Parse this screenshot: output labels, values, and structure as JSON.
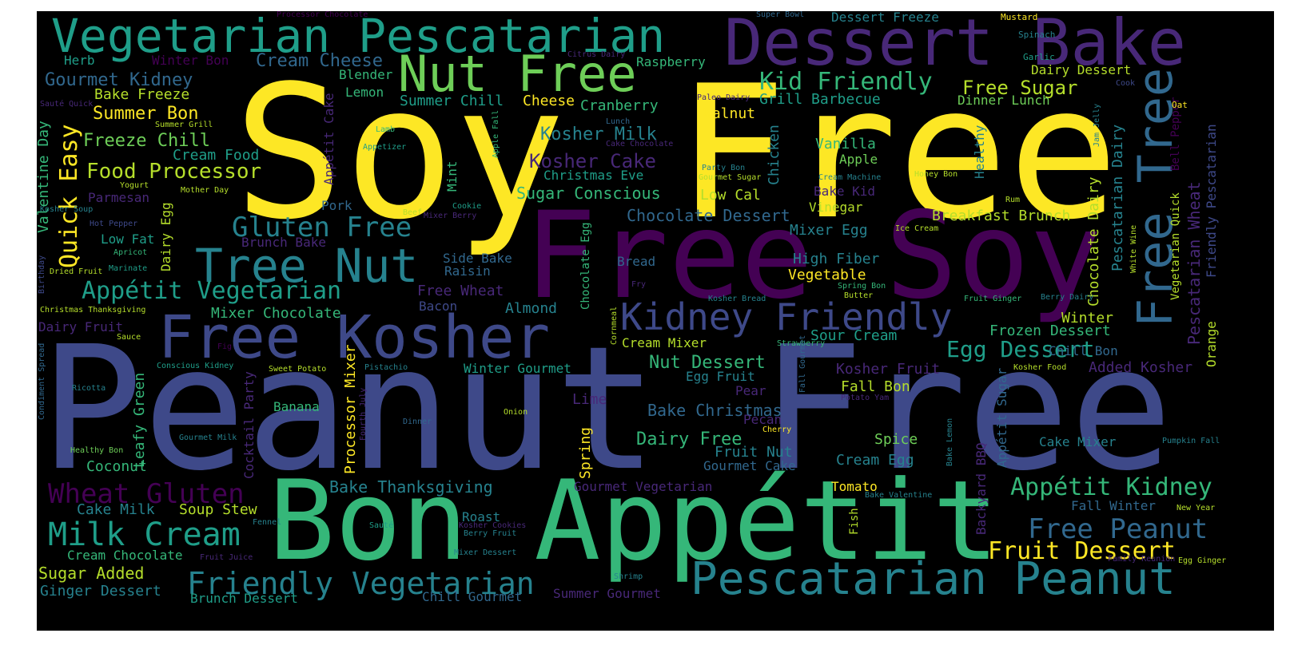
{
  "palette": {
    "background": "#000000",
    "yellow": "#fde725",
    "yellow_green": "#b5de2b",
    "green": "#6ece58",
    "green2": "#35b779",
    "teal": "#1f9e89",
    "teal2": "#26828e",
    "blue": "#31688e",
    "indigo": "#3e4989",
    "purple": "#482878",
    "dark_purple": "#440154"
  },
  "words": {
    "w001": "Soy Free",
    "w002": "Peanut Free",
    "w003": "Free Soy",
    "w004": "Bon Appétit",
    "w005": "Dessert Bake",
    "w006": "Vegetarian Pescatarian",
    "w007": "Nut Free",
    "w008": "Tree Nut",
    "w009": "Free Kosher",
    "w010": "Kidney Friendly",
    "w011": "Pescatarian Peanut",
    "w012": "Friendly Vegetarian",
    "w013": "Free Tree",
    "w014": "Milk Cream",
    "w015": "Wheat Gluten",
    "w016": "Gluten Free",
    "w017": "Appétit Vegetarian",
    "w018": "Quick Easy",
    "w019": "Kid Friendly",
    "w020": "Appétit Kidney",
    "w021": "Free Peanut",
    "w022": "Fruit Dessert",
    "w023": "Egg Dessert",
    "w024": "Food Processor",
    "w025": "Free Sugar",
    "w026": "Freeze Chill",
    "w027": "Summer Bon",
    "w028": "Gourmet Kidney",
    "w029": "Cream Cheese",
    "w030": "Kosher Cake",
    "w031": "Kosher Milk",
    "w032": "Chocolate Dessert",
    "w033": "Sugar Conscious",
    "w034": "Dairy Free",
    "w035": "Nut Dessert",
    "w036": "Bake Christmas",
    "w037": "Bake Thanksgiving",
    "w038": "Grill Barbecue",
    "w039": "Summer Chill",
    "w040": "Dinner Lunch",
    "w041": "Dairy Dessert",
    "w042": "Breakfast Brunch",
    "w043": "Pescatarian Wheat",
    "w044": "Pescatarian Dairy",
    "w045": "Chocolate Dairy",
    "w046": "Friendly Pescatarian",
    "w047": "Vegetarian Quick",
    "w048": "Bell Pepper",
    "w049": "Frozen Dessert",
    "w050": "Added Kosher",
    "w051": "Kosher Fruit",
    "w052": "Chill Bon",
    "w053": "Winter",
    "w054": "Orange",
    "w055": "Fall Winter",
    "w056": "Cake Mixer",
    "w057": "Cream Egg",
    "w058": "Spice",
    "w059": "Fruit Nut",
    "w060": "Gourmet Cake",
    "w061": "Tomato",
    "w062": "Gourmet Vegetarian",
    "w063": "Summer Gourmet",
    "w064": "Chill Gourmet",
    "w065": "Brunch Dessert",
    "w066": "Ginger Dessert",
    "w067": "Sugar Added",
    "w068": "Cream Chocolate",
    "w069": "Cake Milk",
    "w070": "Soup Stew",
    "w071": "Coconut",
    "w072": "Processor Mixer",
    "w073": "Leafy Green",
    "w074": "Cocktail Party",
    "w075": "Banana",
    "w076": "Winter Gourmet",
    "w077": "Cream Mixer",
    "w078": "Egg Fruit",
    "w079": "Pear",
    "w080": "Fall Bon",
    "w081": "Sour Cream",
    "w082": "Mixer Egg",
    "w083": "High Fiber",
    "w084": "Vegetable",
    "w085": "Bake Kid",
    "w086": "Vinegar",
    "w087": "Low Cal",
    "w088": "Vanilla",
    "w089": "Apple",
    "w090": "Healthy",
    "w091": "Chicken",
    "w092": "Walnut",
    "w093": "Cranberry",
    "w094": "Cheese",
    "w095": "Raspberry",
    "w096": "Lemon",
    "w097": "Blender",
    "w098": "Herb",
    "w099": "Winter Bon",
    "w100": "Bake Freeze",
    "w101": "Cream Food",
    "w102": "Valentine Day",
    "w103": "Dairy Egg",
    "w104": "Parmesan",
    "w105": "Low Fat",
    "w106": "Mixer Chocolate",
    "w107": "Dairy Fruit",
    "w108": "Bacon",
    "w109": "Almond",
    "w110": "Free Wheat",
    "w111": "Raisin",
    "w112": "Side Bake",
    "w113": "Bread",
    "w114": "Chocolate Egg",
    "w115": "Christmas Eve",
    "w116": "Mint",
    "w117": "Pork",
    "w118": "Brunch Bake",
    "w119": "Appétit Cake",
    "w120": "Lime",
    "w121": "Pecan",
    "w122": "Spring",
    "w123": "Roast",
    "w124": "Backyard BBQ",
    "w125": "Appétit Sugar",
    "w126": "Fish",
    "w127": "Processor Chocolate",
    "w128": "Super Bowl",
    "w129": "Dessert Freeze",
    "w130": "Mustard",
    "w131": "Spinach",
    "w132": "Garlic",
    "w133": "Cook",
    "w134": "Oat",
    "w135": "Citrus Dairy",
    "w136": "Sauté Quick",
    "w137": "Summer Grill",
    "w138": "Lamb",
    "w139": "Appetizer",
    "w140": "Yogurt",
    "w141": "Mother Day",
    "w142": "Kosher Soup",
    "w143": "Hot Pepper",
    "w144": "Apricot",
    "w145": "Marinate",
    "w146": "Dried Fruit",
    "w147": "Birthday",
    "w148": "Christmas Thanksgiving",
    "w149": "Sauce",
    "w150": "Conscious Kidney",
    "w151": "Condiment Spread",
    "w152": "Ricotta",
    "w153": "Sweet Potato",
    "w154": "Pistachio",
    "w155": "Fig",
    "w156": "Fourth July",
    "w157": "Dinner",
    "w158": "Onion",
    "w159": "Gourmet Milk",
    "w160": "Healthy Bon",
    "w161": "Fennel",
    "w162": "Sauté",
    "w163": "Kosher Cookies",
    "w164": "Berry Fruit",
    "w165": "Fruit Juice",
    "w166": "Mixer Dessert",
    "w167": "Shrimp",
    "w168": "Bake Valentine",
    "w169": "Cornmeal",
    "w170": "Strawberry",
    "w171": "Kosher Bread",
    "w172": "Fry",
    "w173": "Lunch",
    "w174": "Cake Chocolate",
    "w175": "Apple Fall",
    "w176": "Cookie",
    "w177": "Beef",
    "w178": "Mixer Berry",
    "w179": "Party Bon",
    "w180": "Gourmet Sugar",
    "w181": "Paleo Dairy",
    "w182": "Cream Machine",
    "w183": "Honey Bon",
    "w184": "Jam Jelly",
    "w185": "Rum",
    "w186": "Ice Cream",
    "w187": "Spring Bon",
    "w188": "Butter",
    "w189": "Fruit Ginger",
    "w190": "Berry Dairy",
    "w191": "White Wine",
    "w192": "Fall Gourmet",
    "w193": "Potato Yam",
    "w194": "Cherry",
    "w195": "Bake Lemon",
    "w196": "Kosher Food",
    "w197": "Pumpkin Fall",
    "w198": "New Year",
    "w199": "Family Reunion",
    "w200": "Egg Ginger"
  }
}
